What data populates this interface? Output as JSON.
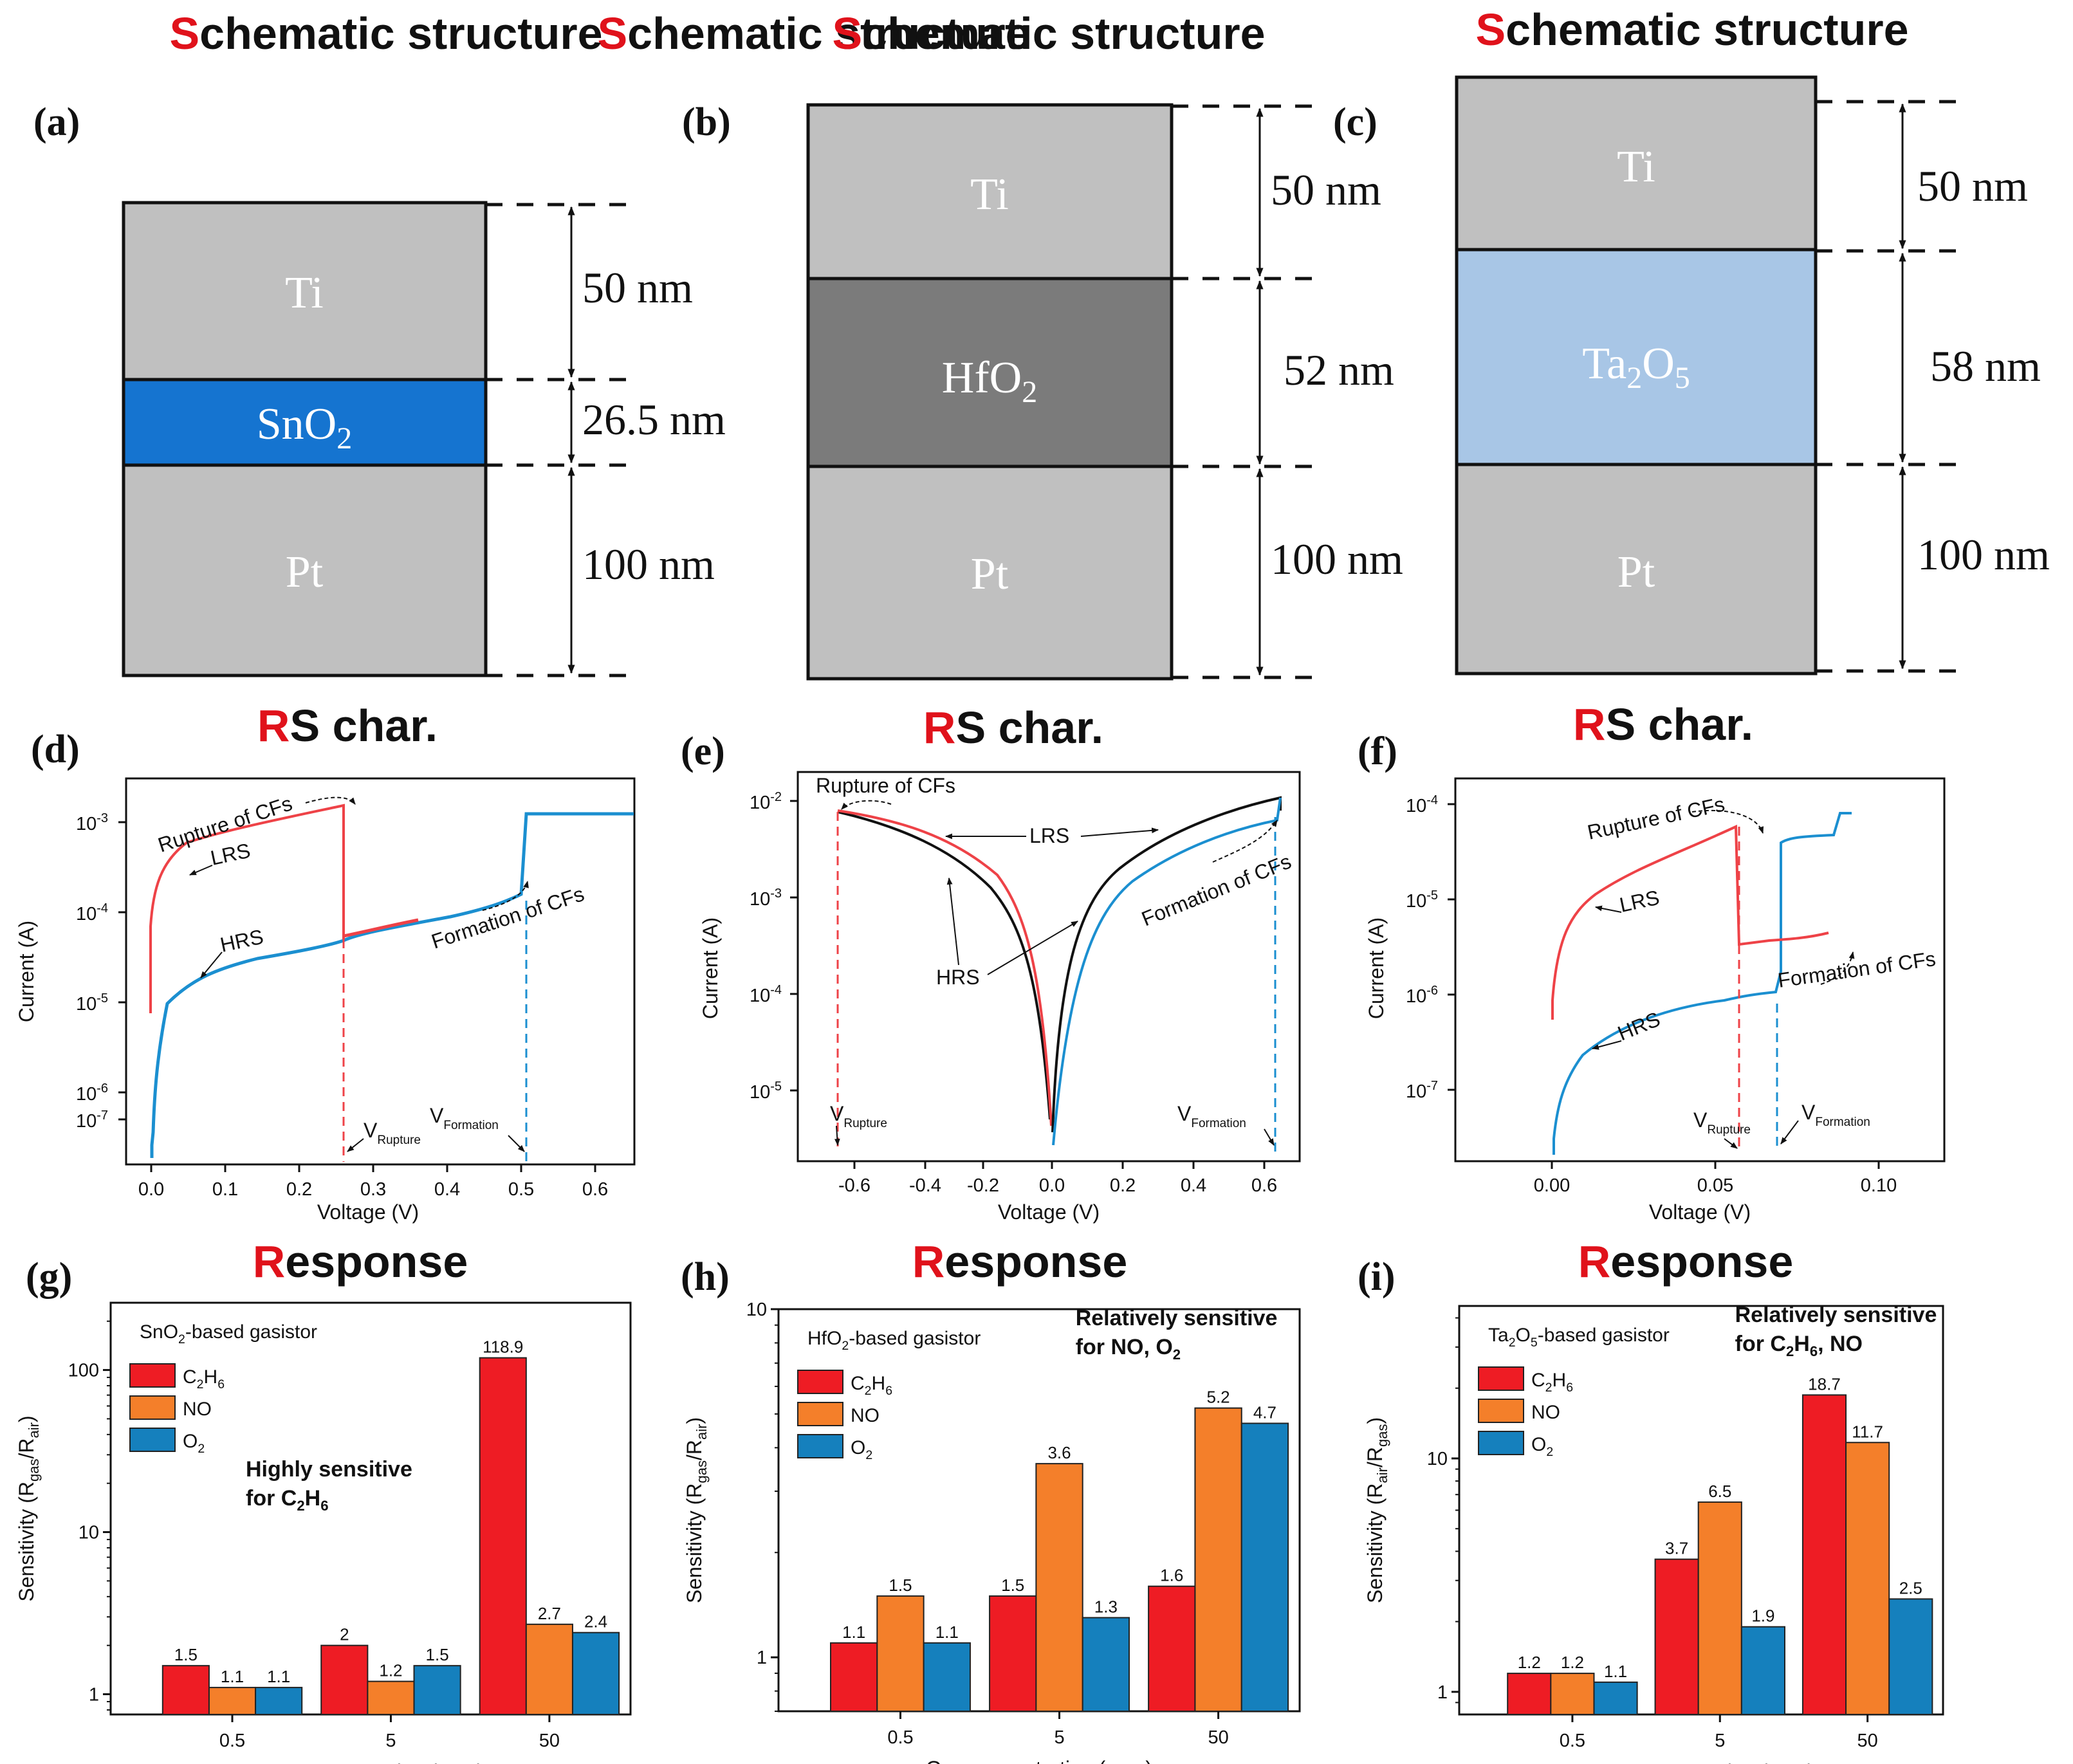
{
  "structure": {
    "section_title_first": "S",
    "section_title_rest": "chematic structure",
    "panels": [
      {
        "label": "(a)",
        "top": "Ti",
        "top_nm": "50 nm",
        "mid": "SnO",
        "mid_sub": "2",
        "mid_nm": "26.5 nm",
        "bot": "Pt",
        "bot_nm": "100 nm",
        "mid_color": "#1574d0"
      },
      {
        "label": "(b)",
        "top": "Ti",
        "top_nm": "50 nm",
        "mid": "HfO",
        "mid_sub": "2",
        "mid_nm": "52 nm",
        "bot": "Pt",
        "bot_nm": "100 nm",
        "mid_color": "#7b7b7b"
      },
      {
        "label": "(c)",
        "top": "Ti",
        "top_nm": "50 nm",
        "mid": "Ta",
        "mid_sub": "2",
        "mid_mid": "O",
        "mid_sub2": "5",
        "mid_nm": "58 nm",
        "bot": "Pt",
        "bot_nm": "100 nm",
        "mid_color": "#a8c6e6"
      }
    ],
    "layer_color": "#c0c0c0"
  },
  "rs": {
    "section_title_first": "R",
    "section_title_rest": "S char.",
    "panels": [
      {
        "label": "(d)",
        "xlabel": "Voltage (V)",
        "ylabel": "Current (A)",
        "xticks": [
          "0.0",
          "0.1",
          "0.2",
          "0.3",
          "0.4",
          "0.5",
          "0.6"
        ],
        "yticks": [
          "10",
          "10",
          "10",
          "10",
          "10"
        ],
        "yexp": [
          "-3",
          "-4",
          "-5",
          "-6",
          "-7"
        ],
        "annotations": {
          "rupture": "Rupture of CFs",
          "lrs": "LRS",
          "hrs": "HRS",
          "formation": "Formation of CFs",
          "v": "V",
          "v_rupture": "Rupture",
          "v_formation": "Formation"
        }
      },
      {
        "label": "(e)",
        "xlabel": "Voltage (V)",
        "ylabel": "Current (A)",
        "xticks": [
          "-0.6",
          "-0.4",
          "-0.2",
          "0.0",
          "0.2",
          "0.4",
          "0.6"
        ],
        "yticks": [
          "10",
          "10",
          "10",
          "10"
        ],
        "yexp": [
          "-2",
          "-3",
          "-4",
          "-5"
        ],
        "annotations": {
          "rupture": "Rupture of CFs",
          "lrs": "LRS",
          "hrs": "HRS",
          "formation": "Formation of CFs",
          "v": "V",
          "v_rupture": "Rupture",
          "v_formation": "Formation"
        }
      },
      {
        "label": "(f)",
        "xlabel": "Voltage (V)",
        "ylabel": "Current (A)",
        "xticks": [
          "0.00",
          "0.05",
          "0.10"
        ],
        "yticks": [
          "10",
          "10",
          "10",
          "10"
        ],
        "yexp": [
          "-4",
          "-5",
          "-6",
          "-7"
        ],
        "annotations": {
          "rupture": "Rupture of CFs",
          "lrs": "LRS",
          "hrs": "HRS",
          "formation": "Formation of CFs",
          "v": "V",
          "v_rupture": "Rupture",
          "v_formation": "Formation"
        }
      }
    ]
  },
  "response": {
    "section_title_first": "R",
    "section_title_rest": "esponse",
    "xlabel": "Gas concentration (ppm)",
    "legend": [
      {
        "name": "C",
        "sub1": "2",
        "mid": "H",
        "sub2": "6",
        "color": "#ee1c24"
      },
      {
        "name": "NO",
        "color": "#f47f2a"
      },
      {
        "name": "O",
        "sub1": "2",
        "color": "#1580bd"
      }
    ]
  },
  "chart_data": [
    {
      "type": "bar",
      "panel": "(g)",
      "title": "SnO2-based gasistor",
      "title_main": "SnO",
      "title_sub": "2",
      "title_rest": "-based gasistor",
      "xlabel": "Gas concentration (ppm)",
      "ylabel": "Sensitivity (Rgas/Rair)",
      "ylabel_main": "Sensitivity (R",
      "ylabel_sub1": "gas",
      "ylabel_slash": "/R",
      "ylabel_sub2": "air",
      "yscale": "log",
      "ylim": [
        0.75,
        260
      ],
      "yticks": [
        "1",
        "10",
        "100"
      ],
      "categories": [
        "0.5",
        "5",
        "50"
      ],
      "series": [
        {
          "name": "C2H6",
          "values": [
            1.5,
            2,
            118.9
          ],
          "labels": [
            "1.5",
            "2",
            "118.9"
          ]
        },
        {
          "name": "NO",
          "values": [
            1.1,
            1.2,
            2.7
          ],
          "labels": [
            "1.1",
            "1.2",
            "2.7"
          ]
        },
        {
          "name": "O2",
          "values": [
            1.1,
            1.5,
            2.4
          ],
          "labels": [
            "1.1",
            "1.5",
            "2.4"
          ]
        }
      ],
      "note_line1": "Highly sensitive",
      "note_line2_main": "for C",
      "note_line2_sub1": "2",
      "note_line2_mid": "H",
      "note_line2_sub2": "6"
    },
    {
      "type": "bar",
      "panel": "(h)",
      "title": "HfO2-based gasistor",
      "title_main": "HfO",
      "title_sub": "2",
      "title_rest": "-based gasistor",
      "xlabel": "Gas concentration (ppm)",
      "ylabel": "Sensitivity (Rgas/Rair)",
      "ylabel_main": "Sensitivity (R",
      "ylabel_sub1": "gas",
      "ylabel_slash": "/R",
      "ylabel_sub2": "air",
      "yscale": "log",
      "ylim": [
        0.7,
        10
      ],
      "yticks": [
        "1",
        "10"
      ],
      "categories": [
        "0.5",
        "5",
        "50"
      ],
      "series": [
        {
          "name": "C2H6",
          "values": [
            1.1,
            1.5,
            1.6
          ],
          "labels": [
            "1.1",
            "1.5",
            "1.6"
          ]
        },
        {
          "name": "NO",
          "values": [
            1.5,
            3.6,
            5.2
          ],
          "labels": [
            "1.5",
            "3.6",
            "5.2"
          ]
        },
        {
          "name": "O2",
          "values": [
            1.1,
            1.3,
            4.7
          ],
          "labels": [
            "1.1",
            "1.3",
            "4.7"
          ]
        }
      ],
      "note_line1": "Relatively sensitive",
      "note_line2_main": "for NO, O",
      "note_line2_sub1": "2"
    },
    {
      "type": "bar",
      "panel": "(i)",
      "title": "Ta2O5-based gasistor",
      "title_main": "Ta",
      "title_sub": "2",
      "title_mid": "O",
      "title_sub2": "5",
      "title_rest": "-based gasistor",
      "xlabel": "Gas concentration (ppm)",
      "ylabel": "Sensitivity (Rair/Rgas)",
      "ylabel_main": "Sensitivity (R",
      "ylabel_sub1": "air",
      "ylabel_slash": "/R",
      "ylabel_sub2": "gas",
      "yscale": "log",
      "ylim": [
        0.8,
        45
      ],
      "yticks": [
        "1",
        "10"
      ],
      "categories": [
        "0.5",
        "5",
        "50"
      ],
      "series": [
        {
          "name": "C2H6",
          "values": [
            1.2,
            3.7,
            18.7
          ],
          "labels": [
            "1.2",
            "3.7",
            "18.7"
          ]
        },
        {
          "name": "NO",
          "values": [
            1.2,
            6.5,
            11.7
          ],
          "labels": [
            "1.2",
            "6.5",
            "11.7"
          ]
        },
        {
          "name": "O2",
          "values": [
            1.1,
            1.9,
            2.5
          ],
          "labels": [
            "1.1",
            "1.9",
            "2.5"
          ]
        }
      ],
      "note_line1": "Relatively sensitive",
      "note_line2_main": "for C",
      "note_line2_sub1": "2",
      "note_line2_mid": "H",
      "note_line2_sub2": "6",
      "note_line2_end": ", NO"
    }
  ]
}
